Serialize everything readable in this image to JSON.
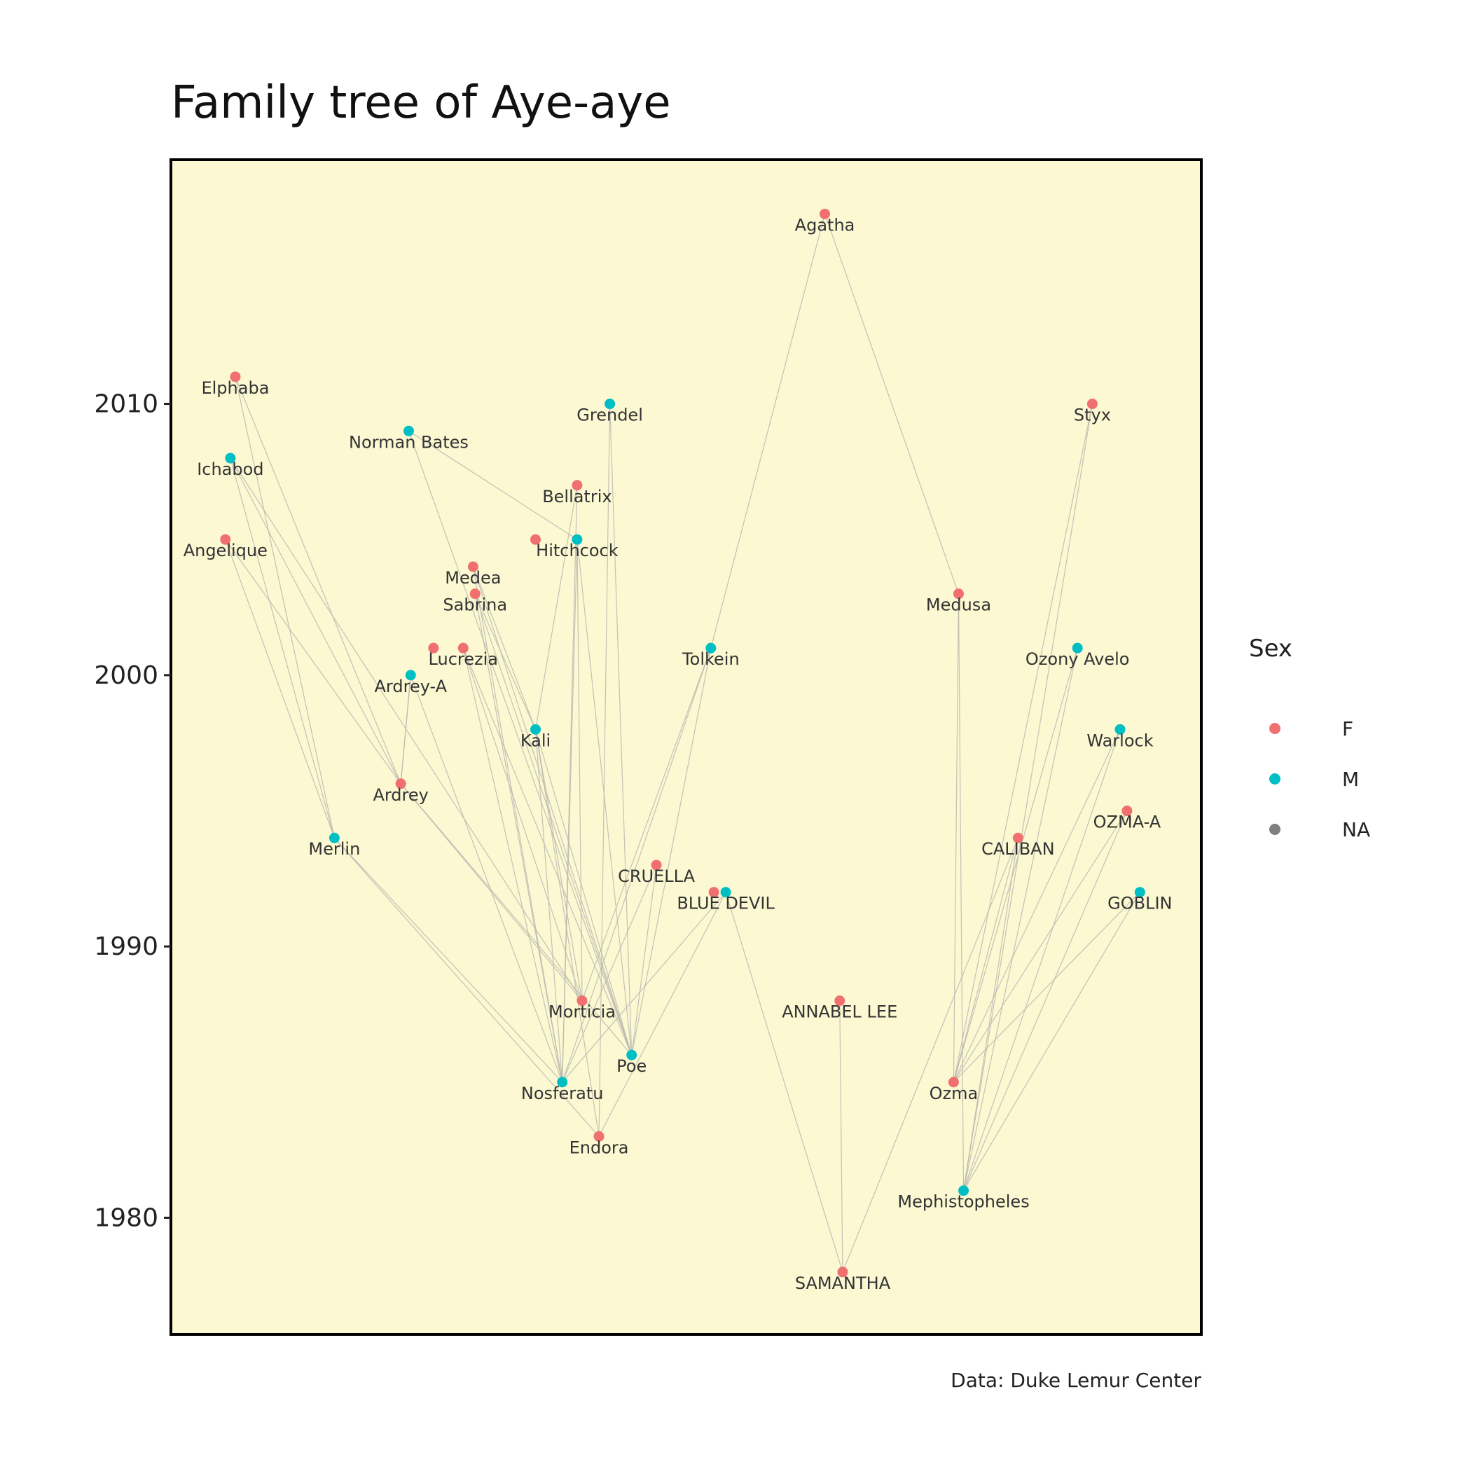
{
  "title": "Family tree of Aye-aye",
  "caption": "Data: Duke Lemur Center",
  "colors": {
    "panel_bg": "#fcf8d2",
    "panel_border": "#000000",
    "edge": "#b8b8b0",
    "F": "#f07070",
    "M": "#00bfc4",
    "NA": "#7f7f7f"
  },
  "legend": {
    "title": "Sex",
    "entries": [
      {
        "key": "F",
        "label": "F"
      },
      {
        "key": "M",
        "label": "M"
      },
      {
        "key": "NA",
        "label": "NA"
      }
    ]
  },
  "chart_data": {
    "type": "scatter",
    "title": "Family tree of Aye-aye",
    "xlabel": "",
    "ylabel": "",
    "y_axis_ticks": [
      1980,
      1990,
      2000,
      2010
    ],
    "ylim": [
      1975.7,
      2019
    ],
    "xlim": [
      -0.2,
      10.2
    ],
    "grid": false,
    "legend_position": "right",
    "nodes": [
      {
        "name": "Agatha",
        "sex": "F",
        "x": 6.4,
        "year": 2017
      },
      {
        "name": "Elphaba",
        "sex": "F",
        "x": 0.45,
        "year": 2011
      },
      {
        "name": "Grendel",
        "sex": "M",
        "x": 4.23,
        "year": 2010
      },
      {
        "name": "Styx",
        "sex": "F",
        "x": 9.1,
        "year": 2010
      },
      {
        "name": "Norman Bates",
        "sex": "M",
        "x": 2.2,
        "year": 2009
      },
      {
        "name": "Ichabod",
        "sex": "M",
        "x": 0.4,
        "year": 2008
      },
      {
        "name": "Bellatrix",
        "sex": "F",
        "x": 3.9,
        "year": 2007
      },
      {
        "name": "Angelique",
        "sex": "F",
        "x": 0.35,
        "year": 2005
      },
      {
        "name": "",
        "sex": "F",
        "x": 3.48,
        "year": 2005
      },
      {
        "name": "Hitchcock",
        "sex": "M",
        "x": 3.9,
        "year": 2005
      },
      {
        "name": "Medea",
        "sex": "F",
        "x": 2.85,
        "year": 2004
      },
      {
        "name": "Sabrina",
        "sex": "F",
        "x": 2.87,
        "year": 2003
      },
      {
        "name": "Medusa",
        "sex": "F",
        "x": 7.75,
        "year": 2003
      },
      {
        "name": "",
        "sex": "F",
        "x": 2.45,
        "year": 2001
      },
      {
        "name": "Lucrezia",
        "sex": "F",
        "x": 2.75,
        "year": 2001
      },
      {
        "name": "Tolkein",
        "sex": "M",
        "x": 5.25,
        "year": 2001
      },
      {
        "name": "Ozony Avelo",
        "sex": "M",
        "x": 8.95,
        "year": 2001
      },
      {
        "name": "Ardrey-A",
        "sex": "M",
        "x": 2.22,
        "year": 2000
      },
      {
        "name": "Kali",
        "sex": "M",
        "x": 3.48,
        "year": 1998
      },
      {
        "name": "Warlock",
        "sex": "M",
        "x": 9.38,
        "year": 1998
      },
      {
        "name": "Ardrey",
        "sex": "F",
        "x": 2.12,
        "year": 1996
      },
      {
        "name": "OZMA-A",
        "sex": "F",
        "x": 9.45,
        "year": 1995
      },
      {
        "name": "Merlin",
        "sex": "M",
        "x": 1.45,
        "year": 1994
      },
      {
        "name": "CALIBAN",
        "sex": "F",
        "x": 8.35,
        "year": 1994
      },
      {
        "name": "CRUELLA",
        "sex": "F",
        "x": 4.7,
        "year": 1993
      },
      {
        "name": "",
        "sex": "F",
        "x": 5.28,
        "year": 1992
      },
      {
        "name": "BLUE DEVIL",
        "sex": "M",
        "x": 5.4,
        "year": 1992
      },
      {
        "name": "GOBLIN",
        "sex": "M",
        "x": 9.58,
        "year": 1992
      },
      {
        "name": "Morticia",
        "sex": "F",
        "x": 3.95,
        "year": 1988
      },
      {
        "name": "ANNABEL LEE",
        "sex": "F",
        "x": 6.55,
        "year": 1988
      },
      {
        "name": "Poe",
        "sex": "M",
        "x": 4.45,
        "year": 1986
      },
      {
        "name": "Nosferatu",
        "sex": "M",
        "x": 3.75,
        "year": 1985
      },
      {
        "name": "Ozma",
        "sex": "F",
        "x": 7.7,
        "year": 1985
      },
      {
        "name": "Endora",
        "sex": "F",
        "x": 4.12,
        "year": 1983
      },
      {
        "name": "Mephistopheles",
        "sex": "M",
        "x": 7.8,
        "year": 1981
      },
      {
        "name": "SAMANTHA",
        "sex": "F",
        "x": 6.58,
        "year": 1978
      }
    ],
    "edges": [
      [
        "Elphaba",
        "Ardrey"
      ],
      [
        "Elphaba",
        "Merlin"
      ],
      [
        "Ichabod",
        "Ardrey"
      ],
      [
        "Ichabod",
        "Merlin"
      ],
      [
        "Ichabod",
        "Morticia"
      ],
      [
        "Angelique",
        "Merlin"
      ],
      [
        "Angelique",
        "Ardrey"
      ],
      [
        "Norman Bates",
        "Hitchcock"
      ],
      [
        "Norman Bates",
        "Poe"
      ],
      [
        "Ardrey-A",
        "Ardrey"
      ],
      [
        "Ardrey-A",
        "Nosferatu"
      ],
      [
        "Ardrey",
        "Ardrey-A"
      ],
      [
        "Ardrey",
        "Morticia"
      ],
      [
        "Ardrey",
        "Poe"
      ],
      [
        "Merlin",
        "Nosferatu"
      ],
      [
        "Merlin",
        "Endora"
      ],
      [
        "Medea",
        "Kali"
      ],
      [
        "Medea",
        "Poe"
      ],
      [
        "Medea",
        "Nosferatu"
      ],
      [
        "Sabrina",
        "Kali"
      ],
      [
        "Sabrina",
        "Poe"
      ],
      [
        "Sabrina",
        "Nosferatu"
      ],
      [
        "Lucrezia",
        "Nosferatu"
      ],
      [
        "Lucrezia",
        "Morticia"
      ],
      [
        "Lucrezia",
        "Poe"
      ],
      [
        "Kali",
        "Morticia"
      ],
      [
        "Kali",
        "Nosferatu"
      ],
      [
        "Kali",
        "Endora"
      ],
      [
        "Kali",
        "Poe"
      ],
      [
        "Bellatrix",
        "Kali"
      ],
      [
        "Bellatrix",
        "Nosferatu"
      ],
      [
        "Hitchcock",
        "Poe"
      ],
      [
        "Hitchcock",
        "Morticia"
      ],
      [
        "Hitchcock",
        "Nosferatu"
      ],
      [
        "Grendel",
        "Poe"
      ],
      [
        "Grendel",
        "Endora"
      ],
      [
        "Tolkein",
        "Morticia"
      ],
      [
        "Tolkein",
        "Poe"
      ],
      [
        "Tolkein",
        "Nosferatu"
      ],
      [
        "Agatha",
        "Tolkein"
      ],
      [
        "Agatha",
        "Medusa"
      ],
      [
        "CRUELLA",
        "Poe"
      ],
      [
        "CRUELLA",
        "Nosferatu"
      ],
      [
        "BLUE DEVIL",
        "Endora"
      ],
      [
        "BLUE DEVIL",
        "SAMANTHA"
      ],
      [
        "BLUE DEVIL",
        "Nosferatu"
      ],
      [
        "ANNABEL LEE",
        "SAMANTHA"
      ],
      [
        "Medusa",
        "Ozma"
      ],
      [
        "Medusa",
        "Mephistopheles"
      ],
      [
        "Styx",
        "Mephistopheles"
      ],
      [
        "Styx",
        "Ozma"
      ],
      [
        "Ozony Avelo",
        "Mephistopheles"
      ],
      [
        "Ozony Avelo",
        "Ozma"
      ],
      [
        "Warlock",
        "Mephistopheles"
      ],
      [
        "Warlock",
        "Ozma"
      ],
      [
        "OZMA-A",
        "Mephistopheles"
      ],
      [
        "OZMA-A",
        "Ozma"
      ],
      [
        "CALIBAN",
        "Mephistopheles"
      ],
      [
        "CALIBAN",
        "Ozma"
      ],
      [
        "CALIBAN",
        "SAMANTHA"
      ],
      [
        "GOBLIN",
        "Mephistopheles"
      ],
      [
        "GOBLIN",
        "Ozma"
      ]
    ]
  }
}
